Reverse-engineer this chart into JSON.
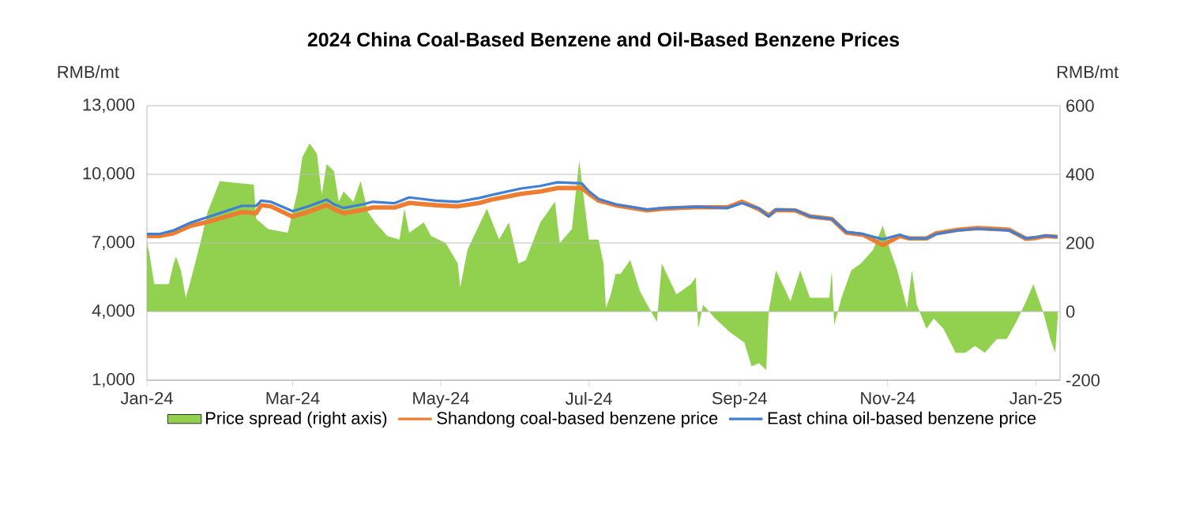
{
  "chart_data": {
    "type": "line",
    "title": "2024 China Coal-Based Benzene and Oil-Based Benzene Prices",
    "ylabel": "RMB/mt",
    "y2label": "RMB/mt",
    "x": [
      "2024-01-01",
      "2024-01-06",
      "2024-01-12",
      "2024-01-19",
      "2024-01-27",
      "2024-02-09",
      "2024-02-15",
      "2024-02-17",
      "2024-02-21",
      "2024-03-01",
      "2024-03-08",
      "2024-03-15",
      "2024-03-18",
      "2024-03-22",
      "2024-03-30",
      "2024-04-03",
      "2024-04-12",
      "2024-04-18",
      "2024-04-29",
      "2024-05-08",
      "2024-05-17",
      "2024-05-22",
      "2024-06-03",
      "2024-06-11",
      "2024-06-18",
      "2024-06-28",
      "2024-07-01",
      "2024-07-05",
      "2024-07-12",
      "2024-07-25",
      "2024-08-01",
      "2024-08-14",
      "2024-08-27",
      "2024-09-02",
      "2024-09-09",
      "2024-09-13",
      "2024-09-16",
      "2024-09-24",
      "2024-09-30",
      "2024-10-09",
      "2024-10-15",
      "2024-10-22",
      "2024-10-30",
      "2024-11-06",
      "2024-11-10",
      "2024-11-17",
      "2024-11-21",
      "2024-11-30",
      "2024-12-08",
      "2024-12-21",
      "2024-12-28",
      "2025-01-01",
      "2025-01-05",
      "2025-01-10"
    ],
    "series": [
      {
        "name": "Price spread (right axis)",
        "type": "area",
        "axis": "y2",
        "color": "#92d050",
        "x": [
          "2024-01-01",
          "2024-01-02",
          "2024-01-04",
          "2024-01-07",
          "2024-01-10",
          "2024-01-12",
          "2024-01-13",
          "2024-01-15",
          "2024-01-17",
          "2024-01-19",
          "2024-01-23",
          "2024-01-26",
          "2024-01-31",
          "2024-02-14",
          "2024-02-15",
          "2024-02-20",
          "2024-02-28",
          "2024-03-03",
          "2024-03-05",
          "2024-03-08",
          "2024-03-11",
          "2024-03-13",
          "2024-03-15",
          "2024-03-18",
          "2024-03-20",
          "2024-03-22",
          "2024-03-26",
          "2024-03-29",
          "2024-04-01",
          "2024-04-04",
          "2024-04-09",
          "2024-04-14",
          "2024-04-16",
          "2024-04-18",
          "2024-04-24",
          "2024-04-27",
          "2024-05-03",
          "2024-05-08",
          "2024-05-09",
          "2024-05-12",
          "2024-05-16",
          "2024-05-20",
          "2024-05-25",
          "2024-05-29",
          "2024-06-02",
          "2024-06-05",
          "2024-06-11",
          "2024-06-17",
          "2024-06-19",
          "2024-06-24",
          "2024-06-27",
          "2024-07-01",
          "2024-07-05",
          "2024-07-07",
          "2024-07-08",
          "2024-07-10",
          "2024-07-12",
          "2024-07-14",
          "2024-07-18",
          "2024-07-22",
          "2024-07-25",
          "2024-07-29",
          "2024-07-31",
          "2024-08-06",
          "2024-08-12",
          "2024-08-14",
          "2024-08-15",
          "2024-08-17",
          "2024-08-22",
          "2024-08-28",
          "2024-09-03",
          "2024-09-06",
          "2024-09-09",
          "2024-09-12",
          "2024-09-13",
          "2024-09-16",
          "2024-09-18",
          "2024-09-22",
          "2024-09-26",
          "2024-09-30",
          "2024-10-08",
          "2024-10-09",
          "2024-10-10",
          "2024-10-13",
          "2024-10-17",
          "2024-10-21",
          "2024-10-26",
          "2024-10-30",
          "2024-11-02",
          "2024-11-05",
          "2024-11-09",
          "2024-11-11",
          "2024-11-13",
          "2024-11-17",
          "2024-11-20",
          "2024-11-24",
          "2024-11-29",
          "2024-12-03",
          "2024-12-07",
          "2024-12-11",
          "2024-12-16",
          "2024-12-20",
          "2024-12-24",
          "2024-12-28",
          "2024-12-31",
          "2025-01-04",
          "2025-01-07",
          "2025-01-09",
          "2025-01-10"
        ],
        "values": [
          200,
          170,
          80,
          80,
          80,
          140,
          160,
          120,
          40,
          90,
          200,
          290,
          380,
          370,
          270,
          240,
          230,
          350,
          450,
          490,
          460,
          340,
          430,
          410,
          320,
          350,
          320,
          380,
          290,
          260,
          220,
          210,
          300,
          230,
          260,
          220,
          200,
          140,
          70,
          180,
          240,
          300,
          210,
          260,
          140,
          150,
          260,
          320,
          200,
          240,
          440,
          210,
          210,
          140,
          10,
          50,
          110,
          110,
          150,
          60,
          20,
          -30,
          140,
          50,
          80,
          100,
          -50,
          20,
          -20,
          -60,
          -90,
          -160,
          -150,
          -170,
          0,
          120,
          90,
          30,
          120,
          40,
          40,
          120,
          -40,
          40,
          120,
          140,
          180,
          250,
          180,
          120,
          10,
          120,
          20,
          -50,
          -20,
          -50,
          -120,
          -120,
          -100,
          -120,
          -80,
          -80,
          -30,
          30,
          80,
          0,
          -80,
          -120,
          -20
        ]
      },
      {
        "name": "Shandong coal-based benzene price",
        "color": "#ed7d31",
        "values": [
          7300,
          7300,
          7420,
          7750,
          7950,
          8350,
          8300,
          8650,
          8600,
          8150,
          8380,
          8650,
          8480,
          8300,
          8450,
          8550,
          8550,
          8750,
          8650,
          8600,
          8750,
          8900,
          9150,
          9250,
          9400,
          9400,
          9150,
          8850,
          8650,
          8420,
          8500,
          8560,
          8560,
          8800,
          8480,
          8200,
          8440,
          8420,
          8160,
          8050,
          7450,
          7350,
          6910,
          7300,
          7200,
          7200,
          7420,
          7580,
          7650,
          7580,
          7180,
          7220,
          7300,
          7270
        ]
      },
      {
        "name": "East china oil-based benzene price",
        "color": "#3f7fd4",
        "values": [
          7390,
          7390,
          7550,
          7890,
          8160,
          8620,
          8620,
          8850,
          8800,
          8390,
          8620,
          8900,
          8690,
          8530,
          8690,
          8800,
          8740,
          8990,
          8850,
          8800,
          8970,
          9100,
          9380,
          9490,
          9650,
          9610,
          9260,
          8920,
          8690,
          8460,
          8530,
          8580,
          8530,
          8740,
          8510,
          8160,
          8460,
          8440,
          8160,
          8050,
          7480,
          7390,
          7160,
          7360,
          7200,
          7200,
          7390,
          7550,
          7620,
          7550,
          7200,
          7250,
          7320,
          7270
        ]
      }
    ],
    "xlim": [
      "2024-01-01",
      "2025-01-11"
    ],
    "xticks": [
      {
        "value": "2024-01-01",
        "label": "Jan-24"
      },
      {
        "value": "2024-03-01",
        "label": "Mar-24"
      },
      {
        "value": "2024-05-01",
        "label": "May-24"
      },
      {
        "value": "2024-07-01",
        "label": "Jul-24"
      },
      {
        "value": "2024-09-01",
        "label": "Sep-24"
      },
      {
        "value": "2024-11-01",
        "label": "Nov-24"
      },
      {
        "value": "2025-01-01",
        "label": "Jan-25"
      }
    ],
    "ylim": [
      1000,
      13000
    ],
    "yticks": [
      {
        "value": 1000,
        "label": "1,000"
      },
      {
        "value": 4000,
        "label": "4,000"
      },
      {
        "value": 7000,
        "label": "7,000"
      },
      {
        "value": 10000,
        "label": "10,000"
      },
      {
        "value": 13000,
        "label": "13,000"
      }
    ],
    "y2lim": [
      -200,
      600
    ],
    "y2ticks": [
      -200,
      0,
      200,
      400,
      600
    ],
    "grid": "y",
    "legend": "bottom"
  }
}
